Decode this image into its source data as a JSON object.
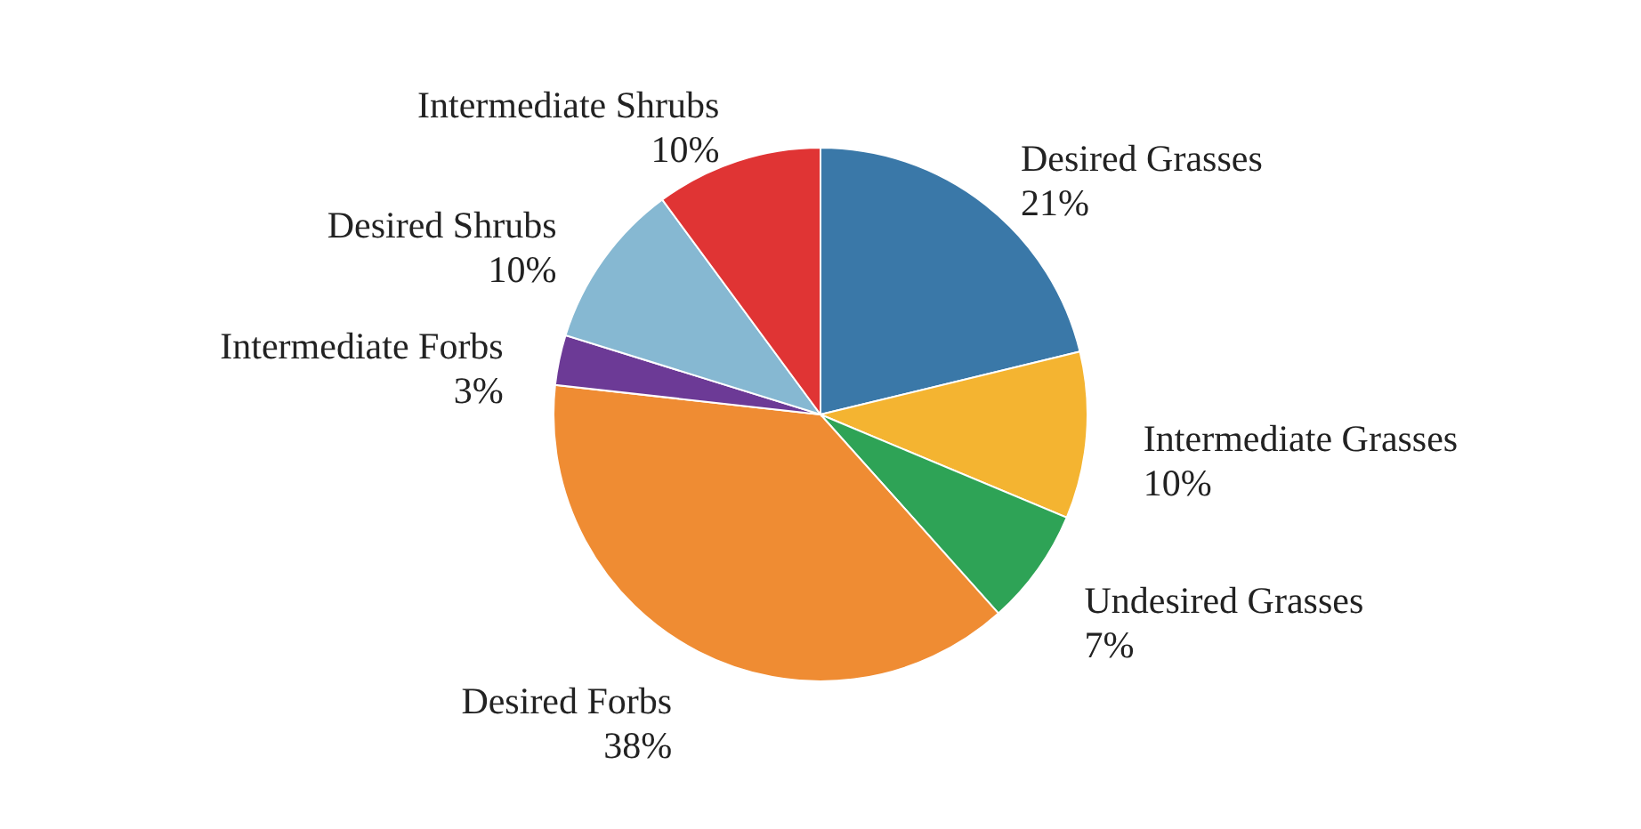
{
  "chart_data": {
    "type": "pie",
    "categories": [
      "Desired Grasses",
      "Intermediate Grasses",
      "Undesired Grasses",
      "Desired Forbs",
      "Intermediate Forbs",
      "Desired Shrubs",
      "Intermediate Shrubs"
    ],
    "values": [
      21,
      10,
      7,
      38,
      3,
      10,
      10
    ],
    "value_labels": [
      "21%",
      "10%",
      "7%",
      "38%",
      "3%",
      "10%",
      "10%"
    ],
    "colors": [
      "#3a78a8",
      "#f4b431",
      "#2ea356",
      "#ef8c33",
      "#6c3a96",
      "#86b8d2",
      "#e03434"
    ]
  }
}
